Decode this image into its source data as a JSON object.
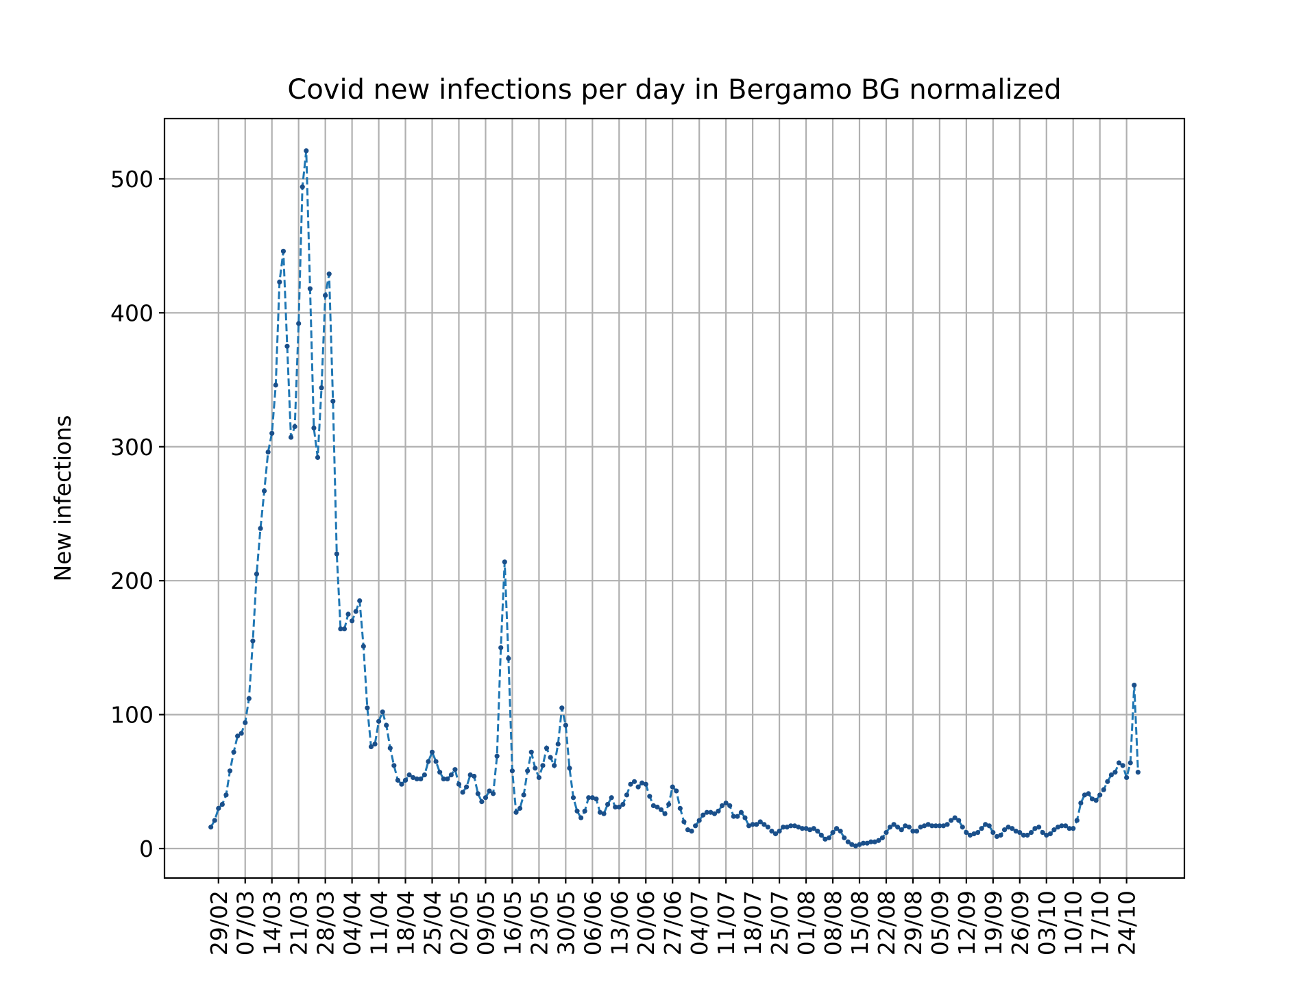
{
  "chart_data": {
    "type": "line",
    "title": "Covid new infections per day in Bergamo BG normalized",
    "xlabel": "",
    "ylabel": "New infections",
    "ylim": [
      -22,
      545
    ],
    "y_ticks": [
      0,
      100,
      200,
      300,
      400,
      500
    ],
    "x_tick_labels": [
      "29/02",
      "07/03",
      "14/03",
      "21/03",
      "28/03",
      "04/04",
      "11/04",
      "18/04",
      "25/04",
      "02/05",
      "09/05",
      "16/05",
      "23/05",
      "30/05",
      "06/06",
      "13/06",
      "20/06",
      "27/06",
      "04/07",
      "11/07",
      "18/07",
      "25/07",
      "01/08",
      "08/08",
      "15/08",
      "22/08",
      "29/08",
      "05/09",
      "12/09",
      "19/09",
      "26/09",
      "03/10",
      "10/10",
      "17/10",
      "24/10"
    ],
    "grid": true,
    "line_color": "#1f77b4",
    "line_style": "dashed",
    "marker_color": "#1a4f8a",
    "x_start": "27/02",
    "series": [
      {
        "values": [
          16,
          21,
          30,
          33,
          40,
          58,
          72,
          84,
          86,
          94,
          112,
          155,
          205,
          239,
          267,
          296,
          310,
          346,
          423,
          446,
          375,
          307,
          315,
          392,
          494,
          521,
          418,
          314,
          292,
          344,
          413,
          429,
          334,
          220,
          164,
          164,
          175,
          170,
          177,
          185,
          151,
          105,
          76,
          78,
          95,
          102,
          92,
          75,
          62,
          51,
          48,
          51,
          55,
          53,
          52,
          52,
          55,
          65,
          72,
          65,
          57,
          52,
          52,
          55,
          59,
          48,
          42,
          46,
          55,
          54,
          41,
          35,
          38,
          43,
          41,
          69,
          150,
          214,
          142,
          58,
          27,
          30,
          40,
          58,
          72,
          60,
          53,
          62,
          75,
          68,
          62,
          78,
          105,
          92,
          60,
          38,
          28,
          23,
          28,
          38,
          38,
          37,
          27,
          26,
          33,
          38,
          31,
          31,
          33,
          40,
          48,
          50,
          46,
          49,
          48,
          39,
          32,
          31,
          29,
          26,
          33,
          46,
          43,
          30,
          20,
          14,
          13,
          17,
          21,
          25,
          27,
          27,
          26,
          28,
          32,
          34,
          32,
          24,
          24,
          27,
          23,
          17,
          18,
          18,
          20,
          18,
          16,
          13,
          11,
          13,
          16,
          16,
          17,
          17,
          16,
          15,
          15,
          14,
          15,
          13,
          10,
          7,
          8,
          12,
          15,
          13,
          8,
          5,
          3,
          2,
          3,
          4,
          4,
          5,
          5,
          6,
          8,
          12,
          16,
          18,
          16,
          14,
          17,
          16,
          13,
          13,
          16,
          17,
          18,
          17,
          17,
          17,
          17,
          18,
          21,
          23,
          21,
          16,
          12,
          10,
          11,
          12,
          15,
          18,
          17,
          12,
          9,
          10,
          14,
          16,
          15,
          13,
          12,
          10,
          10,
          12,
          15,
          16,
          12,
          10,
          11,
          14,
          16,
          17,
          17,
          15,
          15,
          21,
          34,
          40,
          41,
          37,
          36,
          40,
          44,
          50,
          55,
          57,
          64,
          62,
          53,
          64,
          122,
          57
        ]
      }
    ]
  }
}
